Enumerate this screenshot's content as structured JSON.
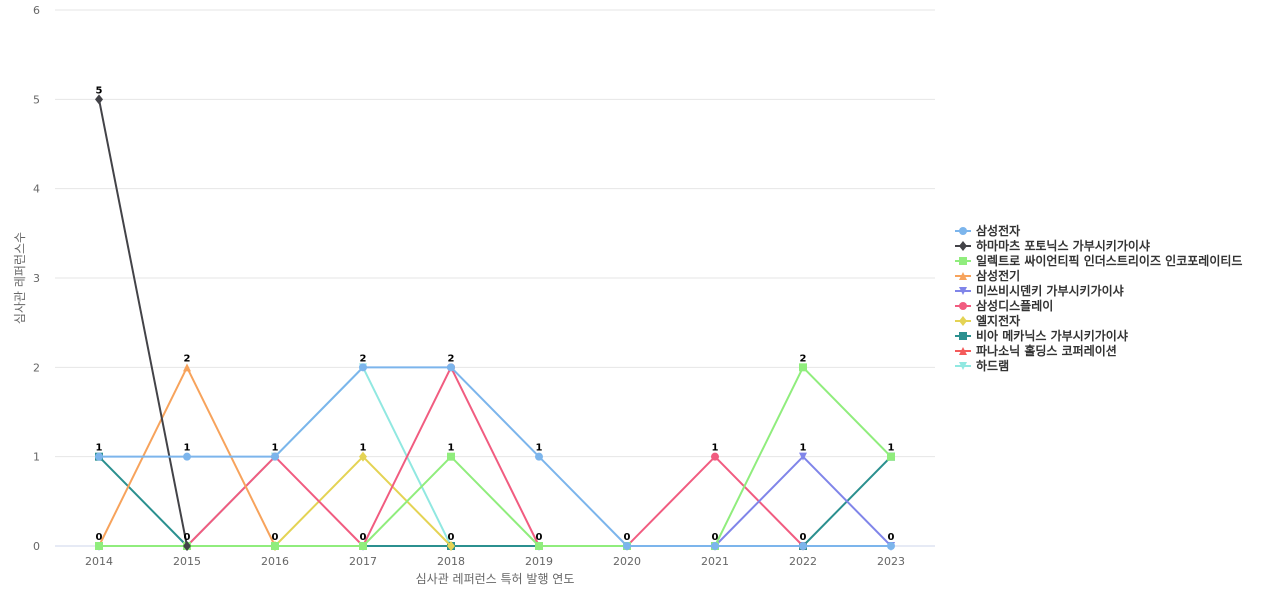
{
  "chart_data": {
    "type": "line",
    "xlabel": "심사관 레퍼런스 특허 발행 연도",
    "ylabel": "심사관 레퍼런스수",
    "categories": [
      "2014",
      "2015",
      "2016",
      "2017",
      "2018",
      "2019",
      "2020",
      "2021",
      "2022",
      "2023"
    ],
    "ylim": [
      0,
      6
    ],
    "yticks": [
      0,
      1,
      2,
      3,
      4,
      5,
      6
    ],
    "grid": true,
    "legend_position": "right",
    "series": [
      {
        "name": "삼성전자",
        "color": "#7cb5ec",
        "marker": "circle",
        "values": [
          1,
          1,
          1,
          2,
          2,
          1,
          0,
          0,
          0,
          0
        ]
      },
      {
        "name": "하마마츠 포토닉스 가부시키가이샤",
        "color": "#434348",
        "marker": "diamond",
        "values": [
          5,
          0,
          null,
          null,
          null,
          null,
          null,
          null,
          null,
          null
        ]
      },
      {
        "name": "일렉트로 싸이언티픽 인더스트리이즈 인코포레이티드",
        "color": "#90ed7d",
        "marker": "square",
        "values": [
          0,
          0,
          0,
          0,
          1,
          0,
          0,
          0,
          2,
          1
        ]
      },
      {
        "name": "삼성전기",
        "color": "#f7a35c",
        "marker": "triangle",
        "values": [
          0,
          2,
          0,
          null,
          null,
          null,
          null,
          null,
          null,
          null
        ]
      },
      {
        "name": "미쓰비시덴키 가부시키가이샤",
        "color": "#8085e9",
        "marker": "triangle-down",
        "values": [
          null,
          null,
          null,
          null,
          null,
          null,
          null,
          0,
          1,
          0
        ]
      },
      {
        "name": "삼성디스플레이",
        "color": "#f15c80",
        "marker": "circle",
        "values": [
          null,
          0,
          1,
          0,
          2,
          0,
          0,
          1,
          0,
          null
        ]
      },
      {
        "name": "엘지전자",
        "color": "#e4d354",
        "marker": "diamond",
        "values": [
          null,
          null,
          0,
          1,
          0,
          null,
          null,
          null,
          null,
          null
        ]
      },
      {
        "name": "비아 메카닉스 가부시키가이샤",
        "color": "#2b908f",
        "marker": "square",
        "values": [
          1,
          0,
          0,
          0,
          0,
          0,
          null,
          null,
          0,
          1
        ]
      },
      {
        "name": "파나소닉 홀딩스 코퍼레이션",
        "color": "#f45b5b",
        "marker": "triangle",
        "values": [
          null,
          0,
          0,
          0,
          null,
          null,
          null,
          null,
          null,
          null
        ]
      },
      {
        "name": "하드램",
        "color": "#91e8e1",
        "marker": "triangle-down",
        "values": [
          0,
          0,
          1,
          2,
          0,
          0,
          null,
          null,
          0,
          0
        ]
      }
    ],
    "data_labels": [
      {
        "x": "2014",
        "text": "5",
        "value": 5
      },
      {
        "x": "2014",
        "text": "1",
        "value": 1
      },
      {
        "x": "2014",
        "text": "0",
        "value": 0
      },
      {
        "x": "2015",
        "text": "2",
        "value": 2
      },
      {
        "x": "2015",
        "text": "1",
        "value": 1
      },
      {
        "x": "2015",
        "text": "0",
        "value": 0
      },
      {
        "x": "2016",
        "text": "1",
        "value": 1
      },
      {
        "x": "2016",
        "text": "0",
        "value": 0
      },
      {
        "x": "2017",
        "text": "2",
        "value": 2
      },
      {
        "x": "2017",
        "text": "1",
        "value": 1
      },
      {
        "x": "2017",
        "text": "0",
        "value": 0
      },
      {
        "x": "2018",
        "text": "2",
        "value": 2
      },
      {
        "x": "2018",
        "text": "1",
        "value": 1
      },
      {
        "x": "2018",
        "text": "0",
        "value": 0
      },
      {
        "x": "2019",
        "text": "1",
        "value": 1
      },
      {
        "x": "2019",
        "text": "0",
        "value": 0
      },
      {
        "x": "2020",
        "text": "0",
        "value": 0
      },
      {
        "x": "2021",
        "text": "1",
        "value": 1
      },
      {
        "x": "2021",
        "text": "0",
        "value": 0
      },
      {
        "x": "2022",
        "text": "2",
        "value": 2
      },
      {
        "x": "2022",
        "text": "1",
        "value": 1
      },
      {
        "x": "2022",
        "text": "0",
        "value": 0
      },
      {
        "x": "2023",
        "text": "1",
        "value": 1
      },
      {
        "x": "2023",
        "text": "0",
        "value": 0
      }
    ]
  }
}
